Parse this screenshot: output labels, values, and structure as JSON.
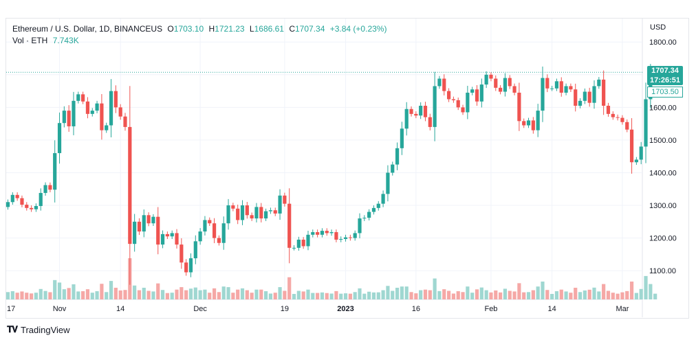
{
  "legend": {
    "symbol": "Ethereum / U.S. Dollar, 1D, BINANCEUS",
    "open_label": "O",
    "open": "1703.10",
    "high_label": "H",
    "high": "1721.23",
    "low_label": "L",
    "low": "1686.61",
    "close_label": "C",
    "close": "1707.34",
    "change": "+3.84 (+0.23%)",
    "vol_label": "Vol · ETH",
    "vol": "7.743K"
  },
  "price_axis": {
    "currency": "USD",
    "last_price": "1707.34",
    "countdown": "17:26:51",
    "prev_price": "1703.50"
  },
  "footer": {
    "brand": "TradingView"
  },
  "colors": {
    "up": "#26a69a",
    "down": "#ef5350",
    "up_vol": "#9fd7d1",
    "down_vol": "#f5a8a6",
    "grid": "#f0f3fa"
  },
  "chart_data": {
    "type": "candlestick",
    "y_ticks": [
      "1100.00",
      "1200.00",
      "1300.00",
      "1400.00",
      "1500.00",
      "1600.00",
      "1700.00",
      "1800.00"
    ],
    "ylim": [
      1012,
      1872
    ],
    "last_price_line": 1707.34,
    "x_ticks": [
      {
        "label": "17",
        "index": -2
      },
      {
        "label": "Nov",
        "index": 11
      },
      {
        "label": "14",
        "index": 24
      },
      {
        "label": "Dec",
        "index": 41
      },
      {
        "label": "19",
        "index": 59
      },
      {
        "label": "2023",
        "index": 72
      },
      {
        "label": "16",
        "index": 87
      },
      {
        "label": "Feb",
        "index": 103
      },
      {
        "label": "14",
        "index": 116
      },
      {
        "label": "Mar",
        "index": 131
      }
    ],
    "close": [
      1310,
      1332,
      1322,
      1302,
      1292,
      1288,
      1298,
      1338,
      1362,
      1348,
      1460,
      1552,
      1590,
      1542,
      1620,
      1640,
      1618,
      1580,
      1590,
      1612,
      1530,
      1545,
      1650,
      1600,
      1572,
      1540,
      1182,
      1250,
      1220,
      1270,
      1245,
      1265,
      1180,
      1212,
      1205,
      1215,
      1180,
      1125,
      1095,
      1138,
      1190,
      1220,
      1255,
      1245,
      1200,
      1185,
      1245,
      1300,
      1290,
      1255,
      1300,
      1270,
      1260,
      1295,
      1260,
      1282,
      1285,
      1275,
      1330,
      1305,
      1170,
      1170,
      1195,
      1175,
      1210,
      1218,
      1210,
      1222,
      1215,
      1218,
      1195,
      1197,
      1202,
      1200,
      1215,
      1260,
      1262,
      1280,
      1292,
      1305,
      1335,
      1400,
      1425,
      1475,
      1535,
      1595,
      1580,
      1575,
      1605,
      1570,
      1540,
      1665,
      1688,
      1650,
      1625,
      1622,
      1600,
      1585,
      1645,
      1655,
      1618,
      1670,
      1700,
      1688,
      1660,
      1648,
      1690,
      1665,
      1645,
      1558,
      1545,
      1560,
      1530,
      1590,
      1690,
      1658,
      1658,
      1680,
      1645,
      1665,
      1655,
      1605,
      1620,
      1648,
      1614,
      1665,
      1685,
      1605,
      1580,
      1570,
      1568,
      1555,
      1532,
      1432,
      1440,
      1480,
      1625,
      1705,
      1707
    ]
  }
}
